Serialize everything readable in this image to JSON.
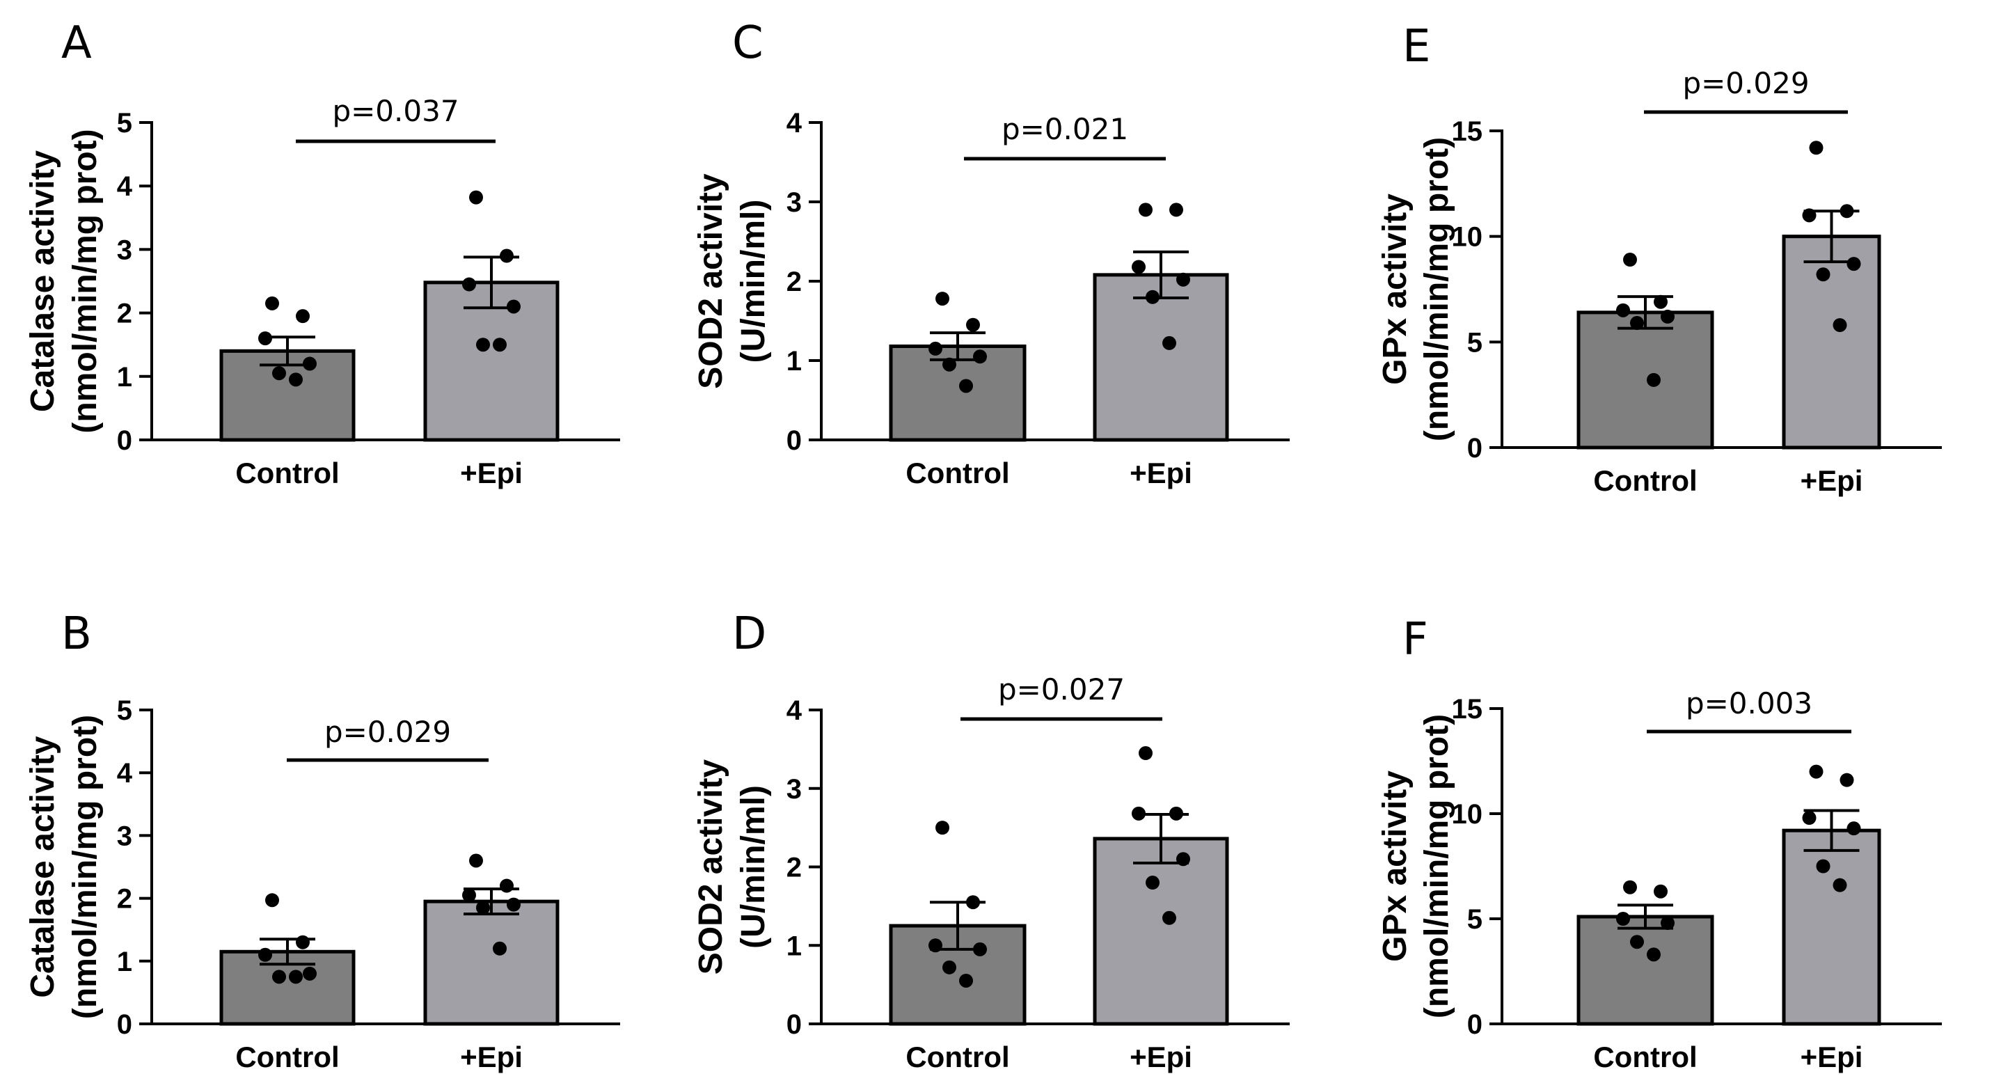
{
  "colors": {
    "control": "#7f7f7f",
    "epi": "#a0a0a6",
    "line": "#000000",
    "background": "#ffffff"
  },
  "chart_data": [
    {
      "panel": "A",
      "type": "bar",
      "categories": [
        "Control",
        "+Epi"
      ],
      "values": [
        1.4,
        2.48
      ],
      "sem": [
        0.22,
        0.4
      ],
      "points": [
        [
          2.15,
          1.95,
          1.6,
          1.2,
          1.05,
          0.95
        ],
        [
          3.82,
          2.9,
          2.45,
          2.1,
          1.5,
          1.5
        ]
      ],
      "ylabel_lines": [
        "Catalase activity",
        "(nmol/min/mg prot)"
      ],
      "ylim": [
        0,
        5
      ],
      "yticks": [
        0,
        1,
        2,
        3,
        4,
        5
      ],
      "yticklabels": [
        "0",
        "1",
        "2",
        "3",
        "4",
        "5"
      ],
      "significance": "p=0.037"
    },
    {
      "panel": "B",
      "type": "bar",
      "categories": [
        "Control",
        "+Epi"
      ],
      "values": [
        1.15,
        1.95
      ],
      "sem": [
        0.2,
        0.2
      ],
      "points": [
        [
          1.97,
          1.3,
          1.1,
          0.8,
          0.75,
          0.75
        ],
        [
          2.6,
          2.2,
          2.05,
          1.9,
          1.85,
          1.2
        ]
      ],
      "ylabel_lines": [
        "Catalase activity",
        "(nmol/min/mg prot)"
      ],
      "ylim": [
        0,
        5
      ],
      "yticks": [
        0,
        1,
        2,
        3,
        4,
        5
      ],
      "yticklabels": [
        "0",
        "1",
        "2",
        "3",
        "4",
        "5"
      ],
      "significance": "p=0.029"
    },
    {
      "panel": "C",
      "type": "bar",
      "categories": [
        "Control",
        "+Epi"
      ],
      "values": [
        1.18,
        2.08
      ],
      "sem": [
        0.17,
        0.29
      ],
      "points": [
        [
          1.78,
          1.45,
          1.15,
          1.05,
          0.95,
          0.68
        ],
        [
          2.9,
          2.9,
          2.18,
          2.02,
          1.8,
          1.22
        ]
      ],
      "ylabel_lines": [
        "SOD2 activity",
        "(U/min/ml)"
      ],
      "ylim": [
        0,
        4
      ],
      "yticks": [
        0,
        1,
        2,
        3,
        4
      ],
      "yticklabels": [
        "0",
        "1",
        "2",
        "3",
        "4"
      ],
      "significance": "p=0.021"
    },
    {
      "panel": "D",
      "type": "bar",
      "categories": [
        "Control",
        "+Epi"
      ],
      "values": [
        1.25,
        2.36
      ],
      "sem": [
        0.3,
        0.31
      ],
      "points": [
        [
          2.5,
          1.55,
          1.0,
          0.95,
          0.72,
          0.55
        ],
        [
          3.45,
          2.68,
          2.68,
          2.1,
          1.8,
          1.35
        ]
      ],
      "ylabel_lines": [
        "SOD2 activity",
        "(U/min/ml)"
      ],
      "ylim": [
        0,
        4
      ],
      "yticks": [
        0,
        1,
        2,
        3,
        4
      ],
      "yticklabels": [
        "0",
        "1",
        "2",
        "3",
        "4"
      ],
      "significance": "p=0.027"
    },
    {
      "panel": "E",
      "type": "bar",
      "categories": [
        "Control",
        "+Epi"
      ],
      "values": [
        6.4,
        10.0
      ],
      "sem": [
        0.75,
        1.2
      ],
      "points": [
        [
          8.9,
          6.9,
          6.5,
          6.2,
          5.9,
          3.2
        ],
        [
          14.2,
          11.2,
          11.0,
          8.7,
          8.2,
          5.8
        ]
      ],
      "ylabel_lines": [
        "GPx activity",
        "(nmol/min/mg prot)"
      ],
      "ylim": [
        0,
        15
      ],
      "yticks": [
        0,
        5,
        10,
        15
      ],
      "yticklabels": [
        "0",
        "5",
        "10",
        "15"
      ],
      "significance": "p=0.029"
    },
    {
      "panel": "F",
      "type": "bar",
      "categories": [
        "Control",
        "+Epi"
      ],
      "values": [
        5.1,
        9.2
      ],
      "sem": [
        0.55,
        0.95
      ],
      "points": [
        [
          6.5,
          6.3,
          5.0,
          4.8,
          3.9,
          3.3
        ],
        [
          12.0,
          11.6,
          9.8,
          9.3,
          7.5,
          6.6
        ]
      ],
      "ylabel_lines": [
        "GPx activity",
        "(nmol/min/mg prot)"
      ],
      "ylim": [
        0,
        15
      ],
      "yticks": [
        0,
        5,
        10,
        15
      ],
      "yticklabels": [
        "0",
        "5",
        "10",
        "15"
      ],
      "significance": "p=0.003"
    }
  ]
}
